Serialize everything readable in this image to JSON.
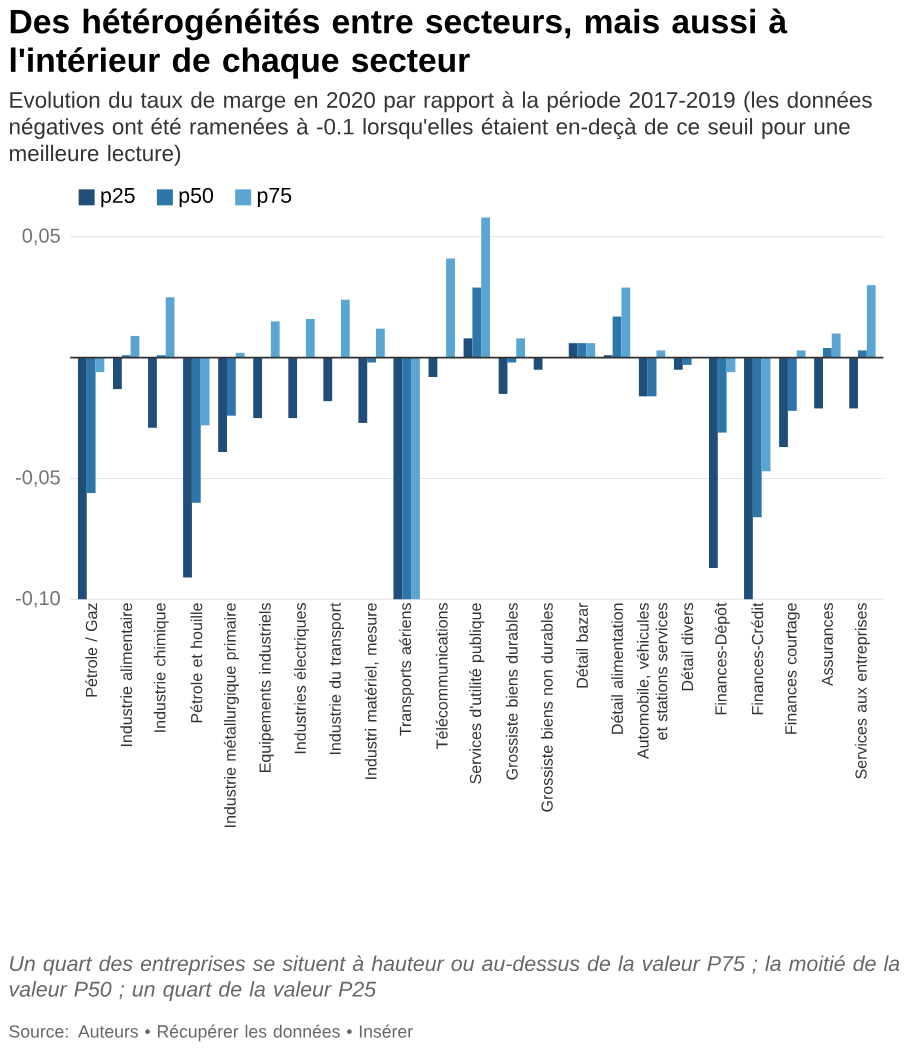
{
  "chart_data": {
    "type": "bar",
    "title": "Des hétérogénéités entre secteurs, mais aussi à l'intérieur de chaque secteur",
    "subtitle": "Evolution du taux de marge en 2020 par rapport à la période 2017-2019 (les données négatives ont été ramenées à -0.1 lorsqu'elles étaient en-deçà de ce seuil pour une meilleure lecture)",
    "categories": [
      "Pétrole / Gaz",
      "Industrie alimentaire",
      "Industrie chimique",
      "Pétrole et houille",
      "Industrie métallurgique primaire",
      "Equipements industriels",
      "Industries électriques",
      "Industrie du transport",
      "Industri matériel, mesure",
      "Transports aériens",
      "Télécommunications",
      "Services d'utilité publique",
      "Grossiste biens durables",
      "Grossiste biens non durables",
      "Détail bazar",
      "Détail alimentation",
      "Automobile, véhicules et stations services",
      "Détail divers",
      "Finances-Dépôt",
      "Finances-Crédit",
      "Finances courtage",
      "Assurances",
      "Services aux entreprises"
    ],
    "series": [
      {
        "name": "p25",
        "color": "#1f4e79",
        "values": [
          -0.1,
          -0.013,
          -0.029,
          -0.091,
          -0.039,
          -0.025,
          -0.025,
          -0.018,
          -0.027,
          -0.1,
          -0.008,
          0.008,
          -0.015,
          -0.005,
          0.006,
          0.001,
          -0.016,
          -0.005,
          -0.087,
          -0.1,
          -0.037,
          -0.021,
          -0.021
        ]
      },
      {
        "name": "p50",
        "color": "#2e75a8",
        "values": [
          -0.056,
          0.001,
          0.001,
          -0.06,
          -0.024,
          0,
          0,
          0,
          -0.002,
          -0.1,
          0,
          0.029,
          -0.002,
          0,
          0.006,
          0.017,
          -0.016,
          -0.003,
          -0.031,
          -0.066,
          -0.022,
          0.004,
          0.003
        ]
      },
      {
        "name": "p75",
        "color": "#5aa5d1",
        "values": [
          -0.006,
          0.009,
          0.025,
          -0.028,
          0.002,
          0.015,
          0.016,
          0.024,
          0.012,
          -0.1,
          0.041,
          0.058,
          0.008,
          0,
          0.006,
          0.029,
          0.003,
          0,
          -0.006,
          -0.047,
          0.003,
          0.01,
          0.03
        ]
      }
    ],
    "ylim": [
      -0.1,
      0.06
    ],
    "yticks": [
      {
        "value": -0.1,
        "label": "-0,10"
      },
      {
        "value": -0.05,
        "label": "-0,05"
      },
      {
        "value": 0,
        "label": null
      },
      {
        "value": 0.05,
        "label": "0,05"
      }
    ],
    "grid": "y",
    "legend": "top left",
    "annotations": [
      "Un quart des entreprises se situent à hauteur ou au-dessus de la valeur P75 ; la moitié de la valeur P50 ; un quart de la valeur P25",
      "Source: Auteurs • Récupérer les données • Insérer"
    ]
  }
}
